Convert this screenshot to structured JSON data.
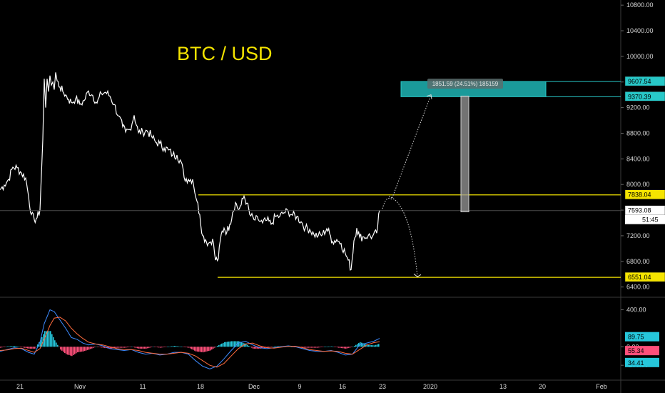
{
  "chart_data": [
    {
      "type": "line",
      "title": "BTC / USD",
      "ylim": [
        6240,
        10880
      ],
      "y_ticks": [
        "10800.00",
        "10400.00",
        "10000.00",
        "9600.00",
        "9200.00",
        "8800.00",
        "8400.00",
        "8000.00",
        "7600.00",
        "7200.00",
        "6800.00",
        "6400.00"
      ],
      "x_ticks": [
        "21",
        "Nov",
        "11",
        "18",
        "Dec",
        "9",
        "16",
        "23",
        "2020",
        "13",
        "20",
        "Feb"
      ],
      "price_series": [
        [
          0,
          7920
        ],
        [
          6,
          7990
        ],
        [
          12,
          8080
        ],
        [
          18,
          8270
        ],
        [
          24,
          8260
        ],
        [
          30,
          8180
        ],
        [
          36,
          8100
        ],
        [
          40,
          7820
        ],
        [
          44,
          7530
        ],
        [
          48,
          7450
        ],
        [
          52,
          7480
        ],
        [
          56,
          7600
        ],
        [
          60,
          8700
        ],
        [
          62,
          9650
        ],
        [
          64,
          9200
        ],
        [
          66,
          9650
        ],
        [
          68,
          9450
        ],
        [
          70,
          9700
        ],
        [
          72,
          9550
        ],
        [
          74,
          9600
        ],
        [
          76,
          9480
        ],
        [
          78,
          9750
        ],
        [
          80,
          9620
        ],
        [
          84,
          9520
        ],
        [
          88,
          9450
        ],
        [
          92,
          9400
        ],
        [
          96,
          9330
        ],
        [
          100,
          9280
        ],
        [
          106,
          9340
        ],
        [
          112,
          9250
        ],
        [
          118,
          9310
        ],
        [
          124,
          9460
        ],
        [
          130,
          9390
        ],
        [
          136,
          9270
        ],
        [
          142,
          9420
        ],
        [
          148,
          9440
        ],
        [
          154,
          9380
        ],
        [
          160,
          9250
        ],
        [
          166,
          9070
        ],
        [
          172,
          8900
        ],
        [
          176,
          8820
        ],
        [
          182,
          8860
        ],
        [
          188,
          9080
        ],
        [
          194,
          8810
        ],
        [
          200,
          8820
        ],
        [
          206,
          8840
        ],
        [
          212,
          8760
        ],
        [
          218,
          8660
        ],
        [
          224,
          8640
        ],
        [
          230,
          8570
        ],
        [
          236,
          8540
        ],
        [
          242,
          8460
        ],
        [
          248,
          8460
        ],
        [
          254,
          8350
        ],
        [
          258,
          8110
        ],
        [
          264,
          8080
        ],
        [
          270,
          8080
        ],
        [
          276,
          7740
        ],
        [
          280,
          7530
        ],
        [
          284,
          7200
        ],
        [
          288,
          7140
        ],
        [
          292,
          7080
        ],
        [
          298,
          7150
        ],
        [
          302,
          6820
        ],
        [
          306,
          6840
        ],
        [
          310,
          7220
        ],
        [
          314,
          7320
        ],
        [
          318,
          7260
        ],
        [
          322,
          7380
        ],
        [
          326,
          7560
        ],
        [
          330,
          7720
        ],
        [
          334,
          7610
        ],
        [
          338,
          7680
        ],
        [
          342,
          7820
        ],
        [
          346,
          7710
        ],
        [
          350,
          7530
        ],
        [
          356,
          7450
        ],
        [
          362,
          7450
        ],
        [
          368,
          7400
        ],
        [
          374,
          7440
        ],
        [
          380,
          7380
        ],
        [
          386,
          7500
        ],
        [
          392,
          7500
        ],
        [
          398,
          7560
        ],
        [
          404,
          7580
        ],
        [
          410,
          7520
        ],
        [
          416,
          7500
        ],
        [
          422,
          7420
        ],
        [
          428,
          7320
        ],
        [
          434,
          7300
        ],
        [
          440,
          7220
        ],
        [
          446,
          7200
        ],
        [
          452,
          7220
        ],
        [
          458,
          7310
        ],
        [
          462,
          7230
        ],
        [
          466,
          7110
        ],
        [
          472,
          7140
        ],
        [
          478,
          7080
        ],
        [
          484,
          6920
        ],
        [
          488,
          6820
        ],
        [
          492,
          6670
        ],
        [
          496,
          7120
        ],
        [
          500,
          7320
        ],
        [
          504,
          7180
        ],
        [
          510,
          7180
        ],
        [
          516,
          7200
        ],
        [
          522,
          7190
        ],
        [
          528,
          7240
        ],
        [
          532,
          7600
        ]
      ],
      "resistance": 7838.04,
      "support": 6551.04,
      "target_zone": [
        9370.39,
        9607.54
      ],
      "current_price": 7593.08,
      "countdown": "51:45",
      "measure_label": "1851.59 (24.51%) 185159",
      "projection_up_end": 9400,
      "projection_down_end": 6560
    },
    {
      "type": "bar",
      "title": "",
      "ylim": [
        -330,
        520
      ],
      "y_ticks": [
        "400.00",
        "0.00",
        "-200.00"
      ],
      "macd_value": "89.75",
      "signal_value": "55.34",
      "hist_value": "34.41",
      "macd_series": [
        [
          0,
          -50
        ],
        [
          10,
          -30
        ],
        [
          20,
          -10
        ],
        [
          30,
          -20
        ],
        [
          40,
          -60
        ],
        [
          48,
          -80
        ],
        [
          56,
          50
        ],
        [
          62,
          250
        ],
        [
          70,
          400
        ],
        [
          76,
          380
        ],
        [
          84,
          290
        ],
        [
          92,
          200
        ],
        [
          100,
          100
        ],
        [
          108,
          80
        ],
        [
          116,
          40
        ],
        [
          124,
          20
        ],
        [
          134,
          30
        ],
        [
          144,
          10
        ],
        [
          154,
          -20
        ],
        [
          164,
          -30
        ],
        [
          174,
          -40
        ],
        [
          184,
          -30
        ],
        [
          194,
          -60
        ],
        [
          204,
          -80
        ],
        [
          214,
          -70
        ],
        [
          224,
          -90
        ],
        [
          234,
          -80
        ],
        [
          244,
          -60
        ],
        [
          254,
          -60
        ],
        [
          264,
          -80
        ],
        [
          274,
          -150
        ],
        [
          284,
          -210
        ],
        [
          294,
          -240
        ],
        [
          304,
          -210
        ],
        [
          314,
          -130
        ],
        [
          324,
          -40
        ],
        [
          334,
          40
        ],
        [
          344,
          60
        ],
        [
          354,
          20
        ],
        [
          364,
          -10
        ],
        [
          374,
          -20
        ],
        [
          384,
          -10
        ],
        [
          394,
          0
        ],
        [
          404,
          10
        ],
        [
          414,
          0
        ],
        [
          424,
          -20
        ],
        [
          434,
          -40
        ],
        [
          444,
          -50
        ],
        [
          454,
          -50
        ],
        [
          464,
          -40
        ],
        [
          474,
          -60
        ],
        [
          484,
          -90
        ],
        [
          494,
          -80
        ],
        [
          504,
          20
        ],
        [
          514,
          40
        ],
        [
          524,
          60
        ],
        [
          532,
          90
        ]
      ],
      "signal_series": [
        [
          0,
          -40
        ],
        [
          10,
          -35
        ],
        [
          20,
          -20
        ],
        [
          30,
          -15
        ],
        [
          40,
          -40
        ],
        [
          48,
          -60
        ],
        [
          56,
          -20
        ],
        [
          62,
          80
        ],
        [
          70,
          230
        ],
        [
          76,
          310
        ],
        [
          84,
          320
        ],
        [
          92,
          280
        ],
        [
          100,
          200
        ],
        [
          108,
          140
        ],
        [
          116,
          90
        ],
        [
          124,
          50
        ],
        [
          134,
          30
        ],
        [
          144,
          20
        ],
        [
          154,
          0
        ],
        [
          164,
          -20
        ],
        [
          174,
          -30
        ],
        [
          184,
          -30
        ],
        [
          194,
          -40
        ],
        [
          204,
          -60
        ],
        [
          214,
          -70
        ],
        [
          224,
          -80
        ],
        [
          234,
          -80
        ],
        [
          244,
          -70
        ],
        [
          254,
          -60
        ],
        [
          264,
          -70
        ],
        [
          274,
          -100
        ],
        [
          284,
          -150
        ],
        [
          294,
          -200
        ],
        [
          304,
          -220
        ],
        [
          314,
          -180
        ],
        [
          324,
          -100
        ],
        [
          334,
          -20
        ],
        [
          344,
          30
        ],
        [
          354,
          40
        ],
        [
          364,
          10
        ],
        [
          374,
          -10
        ],
        [
          384,
          -15
        ],
        [
          394,
          -5
        ],
        [
          404,
          5
        ],
        [
          414,
          5
        ],
        [
          424,
          -10
        ],
        [
          434,
          -30
        ],
        [
          444,
          -40
        ],
        [
          454,
          -50
        ],
        [
          464,
          -45
        ],
        [
          474,
          -50
        ],
        [
          484,
          -70
        ],
        [
          494,
          -80
        ],
        [
          504,
          -30
        ],
        [
          514,
          20
        ],
        [
          524,
          45
        ],
        [
          532,
          55
        ]
      ]
    }
  ]
}
